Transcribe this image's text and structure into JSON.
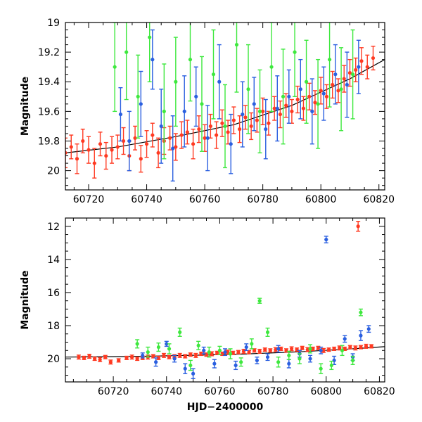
{
  "chart_data": [
    {
      "type": "scatter",
      "panel": "top",
      "xlabel": "",
      "ylabel": "Magnitude",
      "xlim": [
        60712,
        60822
      ],
      "ylim": [
        20.13,
        19.0
      ],
      "y_inverted": true,
      "xticks": [
        60720,
        60740,
        60760,
        60780,
        60800,
        60820
      ],
      "yticks": [
        19,
        19.2,
        19.4,
        19.6,
        19.8,
        20
      ],
      "yticklabels": [
        "19",
        "19.2",
        "19.4",
        "19.6",
        "19.8",
        "20"
      ],
      "grid": false,
      "series_colors": [
        "#ff3a22",
        "#2a5fe0",
        "#3ee83e"
      ],
      "series": [
        {
          "color": "#ff3a22",
          "marker": "circle",
          "errorbars": true,
          "x": [
            60712,
            60714,
            60716,
            60718,
            60720,
            60722,
            60724,
            60726,
            60728,
            60730,
            60732,
            60734,
            60736,
            60738,
            60740,
            60742,
            60744,
            60746,
            60748,
            60750,
            60752,
            60754,
            60756,
            60758,
            60760,
            60762,
            60764,
            60766,
            60768,
            60770,
            60772,
            60774,
            60776,
            60778,
            60780,
            60782,
            60784,
            60786,
            60788,
            60790,
            60792,
            60794,
            60796,
            60798,
            60800,
            60802,
            60804,
            60806,
            60808,
            60810,
            60812,
            60814,
            60816,
            60818
          ],
          "y": [
            19.88,
            19.84,
            19.92,
            19.8,
            19.86,
            19.95,
            19.82,
            19.9,
            19.86,
            19.84,
            19.8,
            19.9,
            19.78,
            19.92,
            19.82,
            19.76,
            19.88,
            19.8,
            19.78,
            19.84,
            19.76,
            19.74,
            19.82,
            19.72,
            19.78,
            19.7,
            19.76,
            19.68,
            19.74,
            19.66,
            19.72,
            19.64,
            19.7,
            19.66,
            19.6,
            19.68,
            19.58,
            19.62,
            19.56,
            19.6,
            19.52,
            19.58,
            19.5,
            19.54,
            19.46,
            19.5,
            19.42,
            19.46,
            19.38,
            19.34,
            19.32,
            19.26,
            19.3,
            19.24
          ],
          "yerr": [
            0.1,
            0.08,
            0.1,
            0.08,
            0.09,
            0.1,
            0.08,
            0.09,
            0.09,
            0.08,
            0.09,
            0.1,
            0.08,
            0.09,
            0.09,
            0.08,
            0.1,
            0.09,
            0.08,
            0.09,
            0.09,
            0.08,
            0.1,
            0.09,
            0.09,
            0.08,
            0.09,
            0.09,
            0.08,
            0.09,
            0.09,
            0.08,
            0.09,
            0.08,
            0.09,
            0.08,
            0.08,
            0.09,
            0.08,
            0.08,
            0.09,
            0.08,
            0.09,
            0.08,
            0.09,
            0.08,
            0.09,
            0.08,
            0.09,
            0.09,
            0.08,
            0.09,
            0.08,
            0.08
          ]
        },
        {
          "color": "#2a5fe0",
          "marker": "circle",
          "errorbars": true,
          "x": [
            60731,
            60734,
            60738,
            60742,
            60745,
            60749,
            60753,
            60757,
            60761,
            60765,
            60769,
            60773,
            60777,
            60781,
            60785,
            60789,
            60793,
            60797,
            60801,
            60805,
            60809,
            60813
          ],
          "y": [
            19.62,
            19.8,
            19.55,
            19.25,
            19.7,
            19.85,
            19.6,
            19.5,
            19.78,
            19.4,
            19.82,
            19.62,
            19.55,
            19.72,
            19.58,
            19.5,
            19.45,
            19.6,
            19.48,
            19.35,
            19.42,
            19.3
          ],
          "yerr": [
            0.18,
            0.2,
            0.22,
            0.2,
            0.25,
            0.22,
            0.24,
            0.2,
            0.22,
            0.25,
            0.2,
            0.22,
            0.18,
            0.2,
            0.22,
            0.18,
            0.2,
            0.22,
            0.18,
            0.2,
            0.22,
            0.18
          ]
        },
        {
          "color": "#3ee83e",
          "marker": "circle",
          "errorbars": true,
          "x": [
            60729,
            60733,
            60737,
            60741,
            60746,
            60750,
            60755,
            60759,
            60763,
            60767,
            60771,
            60775,
            60779,
            60783,
            60787,
            60791,
            60795,
            60799,
            60803,
            60807,
            60811
          ],
          "y": [
            19.3,
            19.2,
            19.5,
            19.1,
            19.6,
            19.4,
            19.25,
            19.55,
            19.35,
            19.7,
            19.15,
            19.45,
            19.6,
            19.3,
            19.5,
            19.2,
            19.4,
            19.55,
            19.25,
            19.45,
            19.35
          ],
          "yerr": [
            0.3,
            0.32,
            0.28,
            0.3,
            0.32,
            0.3,
            0.28,
            0.32,
            0.3,
            0.28,
            0.32,
            0.3,
            0.28,
            0.3,
            0.32,
            0.3,
            0.28,
            0.3,
            0.32,
            0.28,
            0.3
          ]
        }
      ],
      "model_curve": {
        "x": [
          60712,
          60730,
          60750,
          60770,
          60790,
          60800,
          60810,
          60822
        ],
        "y": [
          19.88,
          19.84,
          19.77,
          19.69,
          19.56,
          19.47,
          19.38,
          19.25
        ]
      }
    },
    {
      "type": "scatter",
      "panel": "bottom",
      "xlabel": "HJD−2400000",
      "ylabel": "Magnitude",
      "xlim": [
        60702,
        60822
      ],
      "ylim": [
        21.4,
        11.5
      ],
      "y_inverted": true,
      "xticks": [
        60720,
        60740,
        60760,
        60780,
        60800,
        60820
      ],
      "yticks": [
        12,
        14,
        16,
        18,
        20
      ],
      "grid": false,
      "series": [
        {
          "color": "#ff3a22",
          "marker": "circle",
          "errorbars": true,
          "x": [
            60707,
            60709,
            60711,
            60713,
            60715,
            60717,
            60719,
            60722,
            60725,
            60727,
            60729,
            60731,
            60733,
            60735,
            60737,
            60739,
            60741,
            60743,
            60745,
            60747,
            60749,
            60751,
            60753,
            60755,
            60757,
            60759,
            60761,
            60763,
            60765,
            60767,
            60769,
            60771,
            60773,
            60775,
            60777,
            60779,
            60781,
            60783,
            60785,
            60787,
            60789,
            60791,
            60793,
            60795,
            60797,
            60799,
            60801,
            60803,
            60805,
            60807,
            60809,
            60811,
            60812,
            60813,
            60815,
            60817
          ],
          "y": [
            19.9,
            19.95,
            19.85,
            20.0,
            20.05,
            19.9,
            20.2,
            20.1,
            19.95,
            19.9,
            20.0,
            19.95,
            19.9,
            19.85,
            19.95,
            19.8,
            19.9,
            19.85,
            19.8,
            19.85,
            19.75,
            19.8,
            19.7,
            19.75,
            19.7,
            19.65,
            19.7,
            19.6,
            19.65,
            19.6,
            19.55,
            19.6,
            19.5,
            19.55,
            19.45,
            19.5,
            19.45,
            19.4,
            19.5,
            19.4,
            19.45,
            19.35,
            19.45,
            19.4,
            19.35,
            19.5,
            19.45,
            19.4,
            19.35,
            19.4,
            19.3,
            19.35,
            12.0,
            19.3,
            19.25,
            19.25
          ],
          "yerr": [
            0.12,
            0.1,
            0.12,
            0.1,
            0.12,
            0.1,
            0.12,
            0.1,
            0.1,
            0.12,
            0.1,
            0.1,
            0.12,
            0.1,
            0.1,
            0.12,
            0.1,
            0.1,
            0.12,
            0.1,
            0.1,
            0.12,
            0.1,
            0.1,
            0.12,
            0.1,
            0.1,
            0.12,
            0.1,
            0.1,
            0.12,
            0.1,
            0.1,
            0.12,
            0.1,
            0.1,
            0.12,
            0.1,
            0.1,
            0.12,
            0.1,
            0.1,
            0.12,
            0.1,
            0.1,
            0.12,
            0.1,
            0.1,
            0.12,
            0.1,
            0.1,
            0.12,
            0.3,
            0.1,
            0.12,
            0.1
          ]
        },
        {
          "color": "#2a5fe0",
          "marker": "circle",
          "errorbars": true,
          "x": [
            60731,
            60736,
            60740,
            60743,
            60747,
            60750,
            60754,
            60758,
            60762,
            60766,
            60770,
            60774,
            60778,
            60782,
            60786,
            60790,
            60794,
            60798,
            60800,
            60803,
            60807,
            60810,
            60813,
            60816
          ],
          "y": [
            19.8,
            20.2,
            19.1,
            20.0,
            20.6,
            20.9,
            19.5,
            20.3,
            19.6,
            20.4,
            19.3,
            20.1,
            19.9,
            19.4,
            20.3,
            19.7,
            20.0,
            19.5,
            12.8,
            20.1,
            18.8,
            19.9,
            18.6,
            18.2
          ],
          "yerr": [
            0.15,
            0.25,
            0.15,
            0.2,
            0.3,
            0.3,
            0.2,
            0.25,
            0.2,
            0.25,
            0.2,
            0.2,
            0.2,
            0.2,
            0.25,
            0.2,
            0.2,
            0.2,
            0.2,
            0.25,
            0.2,
            0.2,
            0.3,
            0.2
          ]
        },
        {
          "color": "#3ee83e",
          "marker": "circle",
          "errorbars": true,
          "x": [
            60729,
            60733,
            60737,
            60741,
            60745,
            60749,
            60752,
            60756,
            60760,
            60764,
            60768,
            60772,
            60775,
            60778,
            60782,
            60786,
            60790,
            60794,
            60798,
            60802,
            60806,
            60810,
            60813
          ],
          "y": [
            19.1,
            19.6,
            19.3,
            19.4,
            18.4,
            20.4,
            19.2,
            19.6,
            19.5,
            19.7,
            20.2,
            19.1,
            16.5,
            18.4,
            20.2,
            19.8,
            20.0,
            19.4,
            20.6,
            20.4,
            19.5,
            20.1,
            17.2
          ],
          "yerr": [
            0.25,
            0.3,
            0.25,
            0.3,
            0.25,
            0.3,
            0.25,
            0.3,
            0.25,
            0.3,
            0.25,
            0.3,
            0.15,
            0.25,
            0.3,
            0.25,
            0.3,
            0.25,
            0.3,
            0.25,
            0.3,
            0.25,
            0.2
          ]
        }
      ],
      "model_curve": {
        "x": [
          60702,
          60730,
          60750,
          60770,
          60790,
          60800,
          60810,
          60822
        ],
        "y": [
          19.9,
          19.86,
          19.79,
          19.71,
          19.58,
          19.49,
          19.4,
          19.27
        ]
      }
    }
  ]
}
